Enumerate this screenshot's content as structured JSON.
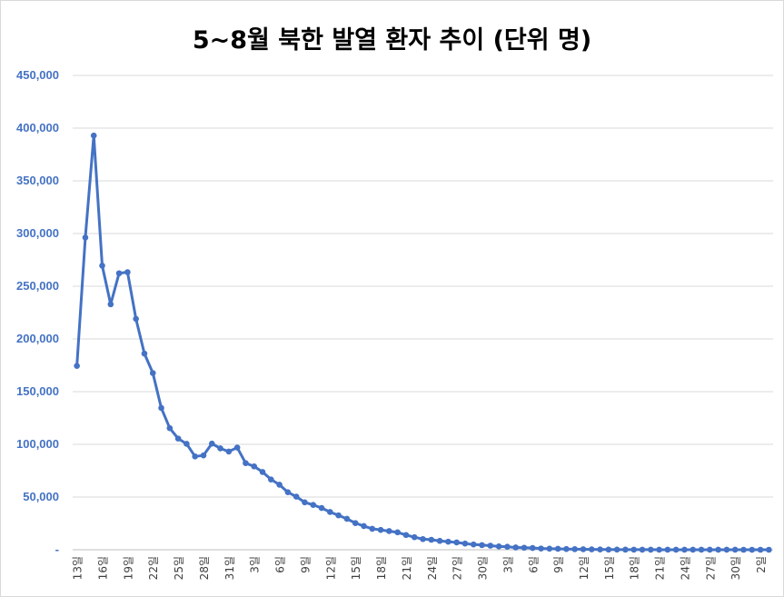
{
  "chart_data": {
    "type": "line",
    "title": "5~8월 북한 발열 환자 추이 (단위 명)",
    "xlabel": "",
    "ylabel": "",
    "ylim": [
      0,
      450000
    ],
    "y_ticks": [
      "-",
      "50,000",
      "100,000",
      "150,000",
      "200,000",
      "250,000",
      "300,000",
      "350,000",
      "400,000",
      "450,000"
    ],
    "x_tick_labels": [
      "13일",
      "16일",
      "19일",
      "22일",
      "25일",
      "28일",
      "31일",
      "3일",
      "6일",
      "9일",
      "12일",
      "15일",
      "18일",
      "21일",
      "24일",
      "27일",
      "30일",
      "3일",
      "6일",
      "9일",
      "12일",
      "15일",
      "18일",
      "21일",
      "24일",
      "27일",
      "30일",
      "2일"
    ],
    "grid": true,
    "legend": "none",
    "series": [
      {
        "color": "#4472c4",
        "values": [
          174440,
          296180,
          392920,
          269510,
          232880,
          262270,
          263370,
          219030,
          186090,
          167650,
          134510,
          115390,
          105500,
          100460,
          88520,
          89500,
          100710,
          96140,
          93180,
          96930,
          82160,
          79100,
          73780,
          66680,
          61730,
          54560,
          50360,
          45010,
          42540,
          39630,
          35810,
          32660,
          29330,
          25310,
          22470,
          19900,
          18800,
          17710,
          16510,
          14000,
          11910,
          10140,
          9490,
          8420,
          7650,
          6950,
          5860,
          5020,
          4410,
          3890,
          3160,
          2840,
          2170,
          1950,
          1680,
          1190,
          1020,
          890,
          690,
          550,
          480,
          350,
          240,
          190,
          150,
          120,
          100,
          80,
          60,
          50,
          40,
          40,
          30,
          30,
          20,
          20,
          20,
          20,
          20,
          10,
          10,
          10,
          10
        ]
      }
    ]
  }
}
